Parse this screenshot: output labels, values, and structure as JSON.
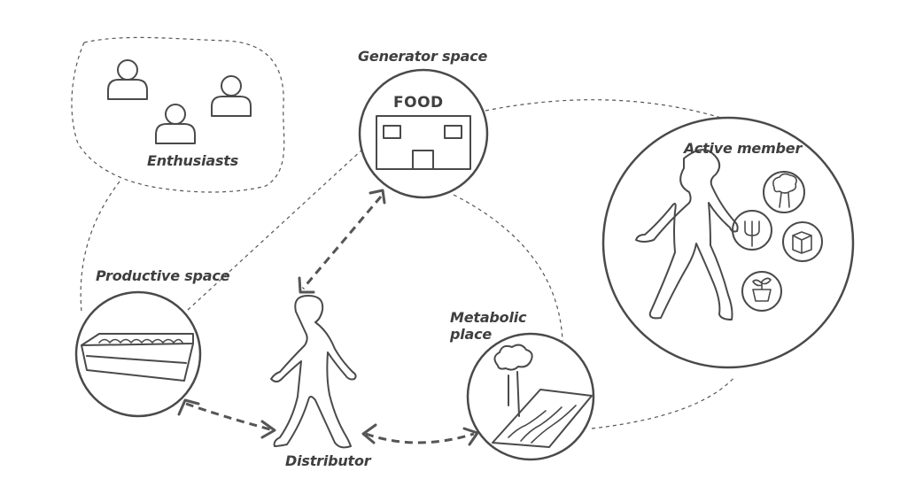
{
  "labels": {
    "generator": "Generator space",
    "food": "FOOD",
    "enthusiasts": "Enthusiasts",
    "active_member": "Active member",
    "productive": "Productive space",
    "metabolic_line1": "Metabolic",
    "metabolic_line2": "place",
    "distributor": "Distributor"
  },
  "colors": {
    "stroke": "#4a4a4a",
    "text": "#3f3f3f",
    "background": "#ffffff"
  }
}
